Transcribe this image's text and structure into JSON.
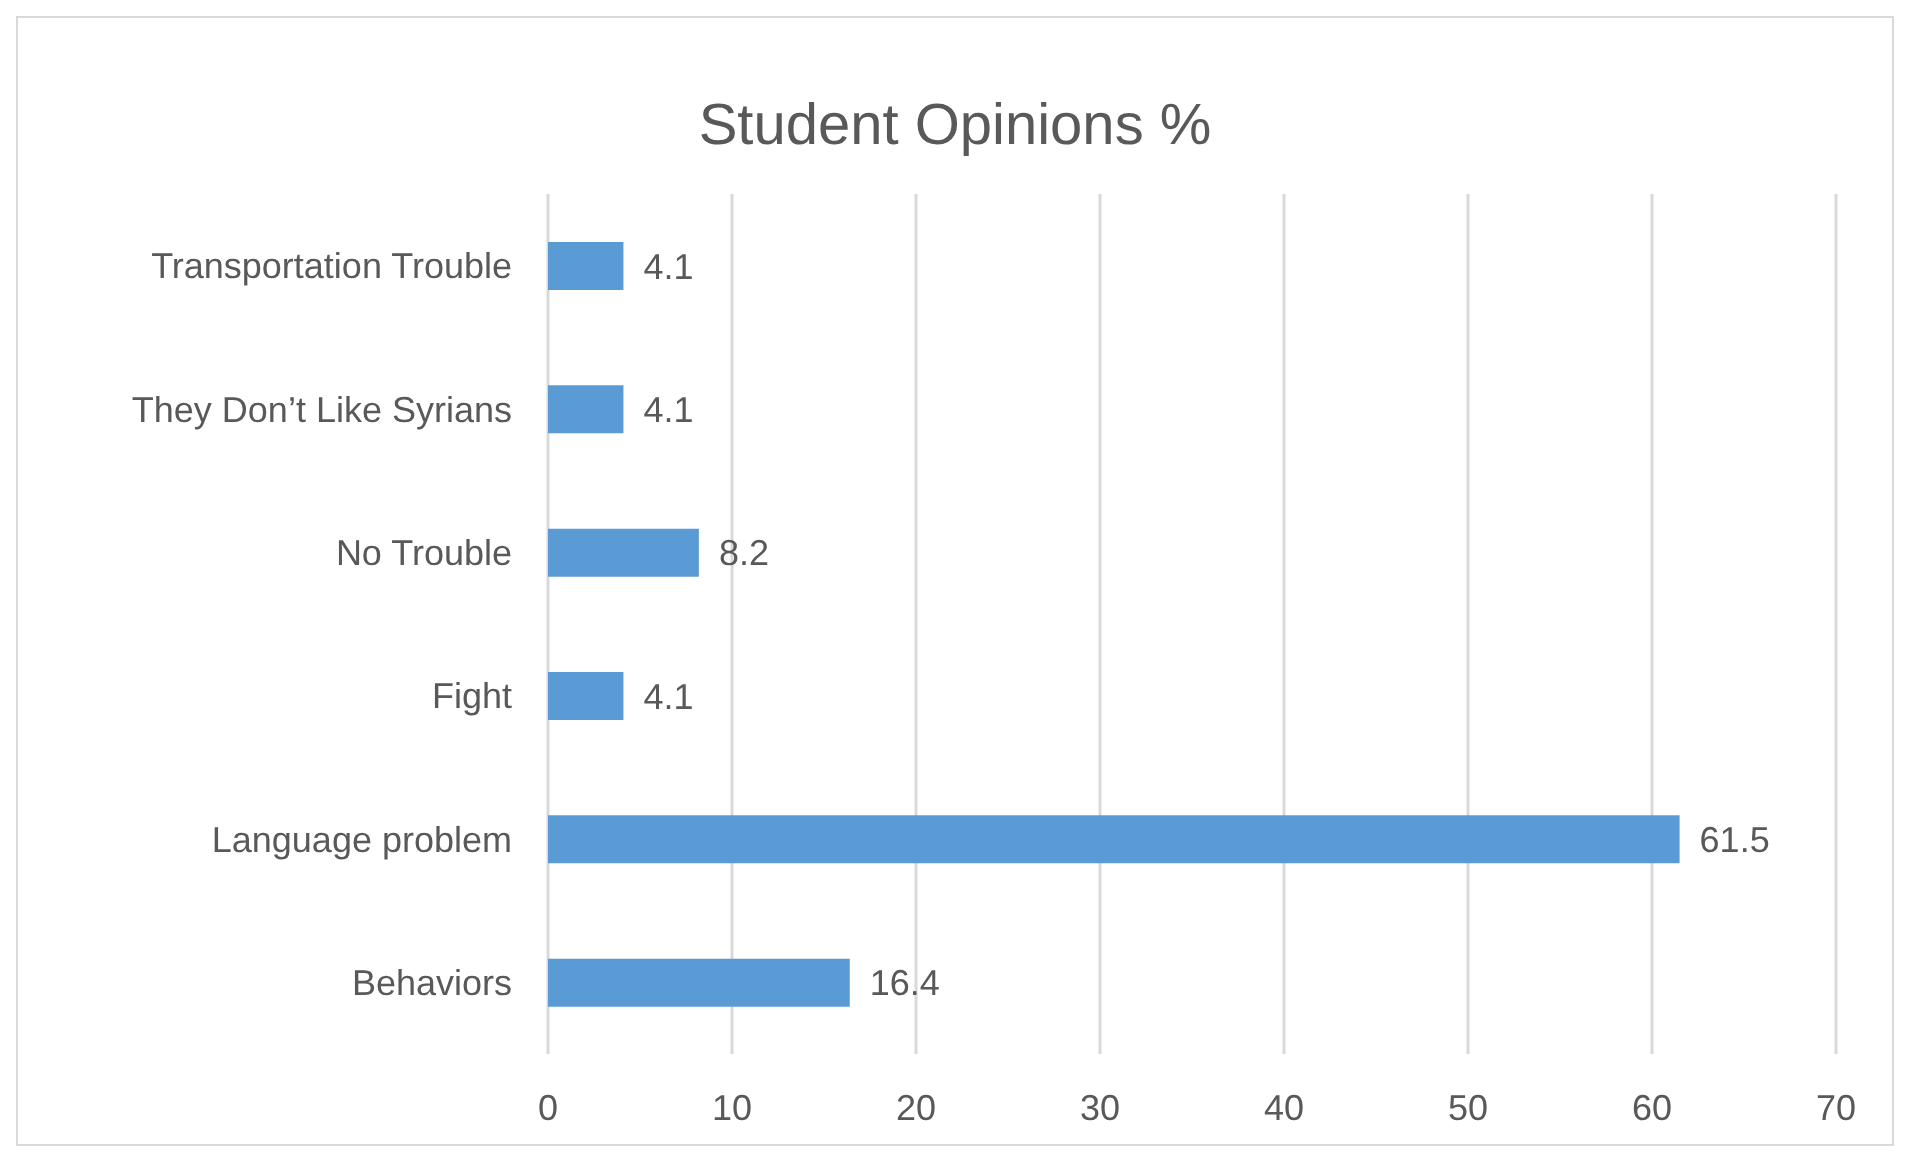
{
  "chart_data": {
    "type": "bar",
    "orientation": "horizontal",
    "title": "Student Opinions %",
    "categories": [
      "Transportation Trouble",
      "They Don’t Like Syrians",
      "No Trouble",
      "Fight",
      "Language problem",
      "Behaviors"
    ],
    "values": [
      4.1,
      4.1,
      8.2,
      4.1,
      61.5,
      16.4
    ],
    "color": "#5b9bd5",
    "xlim": [
      0,
      70
    ],
    "xticks": [
      0,
      10,
      20,
      30,
      40,
      50,
      60,
      70
    ],
    "grid": "x",
    "data_labels": true,
    "legend": false
  }
}
